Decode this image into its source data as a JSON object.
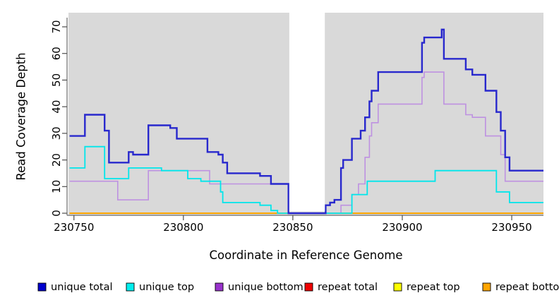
{
  "chart_data": {
    "type": "line",
    "subtype": "step-after-coverage-plot",
    "title": "",
    "xlabel": "Coordinate in Reference Genome",
    "ylabel": "Read Coverage Depth",
    "x_ticks": [
      230750,
      230800,
      230850,
      230900,
      230950
    ],
    "y_ticks": [
      0,
      10,
      20,
      30,
      40,
      50,
      60,
      70
    ],
    "xlim": [
      230747.5,
      230964.5
    ],
    "ylim": [
      0,
      70
    ],
    "grid": "off",
    "plot_bg_color": "#d9d9d9",
    "axis_color": "#4d4d4d",
    "masked_gap": {
      "x_start": 230848,
      "x_end": 230865,
      "color": "#ffffff"
    },
    "legend_position": "bottom-horizontal",
    "series": [
      {
        "name": "unique total",
        "line_color": "#2828cd",
        "legend_color": "#0000cd",
        "line_width": 2.4,
        "points": [
          [
            230748,
            29
          ],
          [
            230755,
            37
          ],
          [
            230764,
            31
          ],
          [
            230766,
            19
          ],
          [
            230775,
            23
          ],
          [
            230777,
            22
          ],
          [
            230784,
            33
          ],
          [
            230794,
            32
          ],
          [
            230797,
            28
          ],
          [
            230811,
            23
          ],
          [
            230816,
            22
          ],
          [
            230818,
            19
          ],
          [
            230820,
            15
          ],
          [
            230835,
            14
          ],
          [
            230840,
            11
          ],
          [
            230848,
            0
          ],
          [
            230865,
            3
          ],
          [
            230867,
            4
          ],
          [
            230869,
            5
          ],
          [
            230872,
            17
          ],
          [
            230873,
            20
          ],
          [
            230877,
            28
          ],
          [
            230881,
            31
          ],
          [
            230883,
            36
          ],
          [
            230885,
            42
          ],
          [
            230886,
            46
          ],
          [
            230889,
            53
          ],
          [
            230909,
            64
          ],
          [
            230910,
            66
          ],
          [
            230918,
            69
          ],
          [
            230919,
            58
          ],
          [
            230929,
            54
          ],
          [
            230932,
            52
          ],
          [
            230938,
            46
          ],
          [
            230943,
            38
          ],
          [
            230945,
            31
          ],
          [
            230947,
            21
          ],
          [
            230949,
            16
          ]
        ]
      },
      {
        "name": "unique top",
        "line_color": "#00e6eb",
        "legend_color": "#00eeee",
        "line_width": 1.8,
        "points": [
          [
            230748,
            17
          ],
          [
            230755,
            25
          ],
          [
            230764,
            13
          ],
          [
            230775,
            17
          ],
          [
            230790,
            16
          ],
          [
            230802,
            13
          ],
          [
            230808,
            12
          ],
          [
            230817,
            8
          ],
          [
            230818,
            4
          ],
          [
            230835,
            3
          ],
          [
            230840,
            1
          ],
          [
            230843,
            0
          ],
          [
            230877,
            7
          ],
          [
            230884,
            12
          ],
          [
            230915,
            16
          ],
          [
            230943,
            8
          ],
          [
            230949,
            4
          ]
        ]
      },
      {
        "name": "unique bottom",
        "line_color": "#be91e1",
        "legend_color": "#9932cc",
        "line_width": 1.6,
        "points": [
          [
            230748,
            12
          ],
          [
            230770,
            5
          ],
          [
            230784,
            16
          ],
          [
            230812,
            11
          ],
          [
            230848,
            0
          ],
          [
            230872,
            3
          ],
          [
            230877,
            7
          ],
          [
            230880,
            11
          ],
          [
            230883,
            21
          ],
          [
            230885,
            29
          ],
          [
            230886,
            34
          ],
          [
            230889,
            41
          ],
          [
            230909,
            51
          ],
          [
            230910,
            53
          ],
          [
            230919,
            41
          ],
          [
            230929,
            37
          ],
          [
            230932,
            36
          ],
          [
            230938,
            29
          ],
          [
            230945,
            22
          ],
          [
            230947,
            12
          ]
        ]
      },
      {
        "name": "repeat total",
        "line_color": "#ee0000",
        "legend_color": "#ee0000",
        "line_width": 1.8,
        "points": [
          [
            230748,
            0
          ]
        ]
      },
      {
        "name": "repeat top",
        "line_color": "#ffff00",
        "legend_color": "#ffff00",
        "line_width": 1.8,
        "points": [
          [
            230748,
            0
          ]
        ]
      },
      {
        "name": "repeat bottom",
        "line_color": "#ffa500",
        "legend_color": "#ffa500",
        "line_width": 2,
        "points": [
          [
            230748,
            0
          ]
        ]
      }
    ],
    "draw_order": [
      3,
      4,
      5,
      2,
      1,
      0
    ],
    "legend_item_x": [
      54,
      179,
      305,
      432,
      558,
      684
    ]
  }
}
